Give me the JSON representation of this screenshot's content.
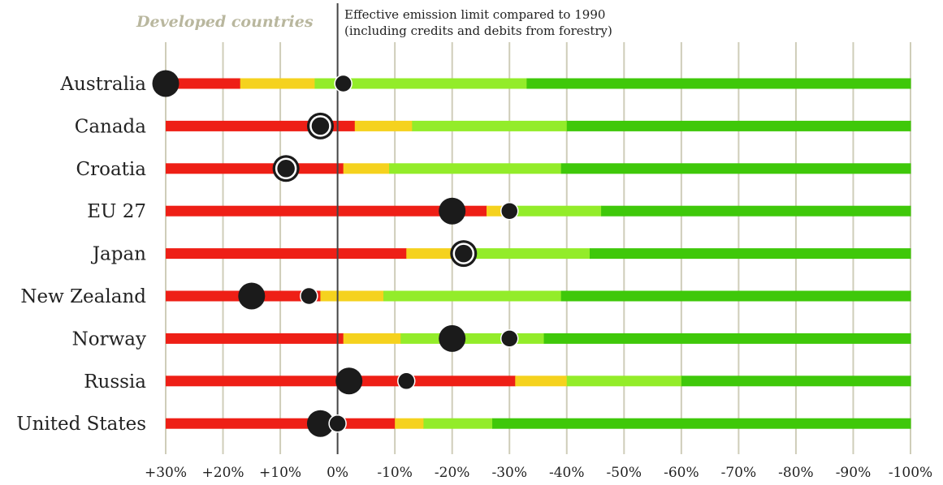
{
  "header": {
    "title": "Developed countries",
    "subtitle_line1": "Effective emission limit compared to 1990",
    "subtitle_line2": "(including credits and debits from forestry)"
  },
  "colors": {
    "red": "#ee1f16",
    "yellow": "#f5d21e",
    "light_green": "#93ec2a",
    "green": "#3fc80a",
    "dot": "#1b1b1b",
    "grid": "#cfcdb9",
    "zero_line": "#444444"
  },
  "chart_data": {
    "type": "range-bar",
    "title": "Developed countries",
    "subtitle": "Effective emission limit compared to 1990 (including credits and debits from forestry)",
    "x_tick_labels": [
      "+30%",
      "+20%",
      "+10%",
      "0%",
      "-10%",
      "-20%",
      "-30%",
      "-40%",
      "-50%",
      "-60%",
      "-70%",
      "-80%",
      "-90%",
      "-100%"
    ],
    "x_ticks": [
      30,
      20,
      10,
      0,
      -10,
      -20,
      -30,
      -40,
      -50,
      -60,
      -70,
      -80,
      -90,
      -100
    ],
    "xlim": [
      30,
      -100
    ],
    "zero_line": 0,
    "color_legend": [
      "red",
      "yellow",
      "light green",
      "green"
    ],
    "countries": [
      {
        "name": "Australia",
        "segments": [
          {
            "color": "red",
            "from": 30,
            "to": 17
          },
          {
            "color": "yellow",
            "from": 17,
            "to": 4
          },
          {
            "color": "light_green",
            "from": 4,
            "to": -33
          },
          {
            "color": "green",
            "from": -33,
            "to": -100
          }
        ],
        "markers": [
          {
            "value": 30,
            "size": "large"
          },
          {
            "value": -1,
            "size": "small"
          }
        ]
      },
      {
        "name": "Canada",
        "segments": [
          {
            "color": "red",
            "from": 30,
            "to": -3
          },
          {
            "color": "yellow",
            "from": -3,
            "to": -13
          },
          {
            "color": "light_green",
            "from": -13,
            "to": -40
          },
          {
            "color": "green",
            "from": -40,
            "to": -100
          }
        ],
        "markers": [
          {
            "value": 3,
            "size": "ringed"
          }
        ]
      },
      {
        "name": "Croatia",
        "segments": [
          {
            "color": "red",
            "from": 30,
            "to": -1
          },
          {
            "color": "yellow",
            "from": -1,
            "to": -9
          },
          {
            "color": "light_green",
            "from": -9,
            "to": -39
          },
          {
            "color": "green",
            "from": -39,
            "to": -100
          }
        ],
        "markers": [
          {
            "value": 9,
            "size": "ringed"
          }
        ]
      },
      {
        "name": "EU 27",
        "segments": [
          {
            "color": "red",
            "from": 30,
            "to": -26
          },
          {
            "color": "yellow",
            "from": -26,
            "to": -29
          },
          {
            "color": "light_green",
            "from": -29,
            "to": -46
          },
          {
            "color": "green",
            "from": -46,
            "to": -100
          }
        ],
        "markers": [
          {
            "value": -20,
            "size": "large"
          },
          {
            "value": -30,
            "size": "small"
          }
        ]
      },
      {
        "name": "Japan",
        "segments": [
          {
            "color": "red",
            "from": 30,
            "to": -12
          },
          {
            "color": "yellow",
            "from": -12,
            "to": -21
          },
          {
            "color": "light_green",
            "from": -21,
            "to": -44
          },
          {
            "color": "green",
            "from": -44,
            "to": -100
          }
        ],
        "markers": [
          {
            "value": -22,
            "size": "ringed"
          }
        ]
      },
      {
        "name": "New Zealand",
        "segments": [
          {
            "color": "red",
            "from": 30,
            "to": 3
          },
          {
            "color": "yellow",
            "from": 3,
            "to": -8
          },
          {
            "color": "light_green",
            "from": -8,
            "to": -39
          },
          {
            "color": "green",
            "from": -39,
            "to": -100
          }
        ],
        "markers": [
          {
            "value": 15,
            "size": "large"
          },
          {
            "value": 5,
            "size": "small"
          }
        ]
      },
      {
        "name": "Norway",
        "segments": [
          {
            "color": "red",
            "from": 30,
            "to": -1
          },
          {
            "color": "yellow",
            "from": -1,
            "to": -11
          },
          {
            "color": "light_green",
            "from": -11,
            "to": -36
          },
          {
            "color": "green",
            "from": -36,
            "to": -100
          }
        ],
        "markers": [
          {
            "value": -20,
            "size": "large"
          },
          {
            "value": -30,
            "size": "small"
          }
        ]
      },
      {
        "name": "Russia",
        "segments": [
          {
            "color": "red",
            "from": 30,
            "to": -31
          },
          {
            "color": "yellow",
            "from": -31,
            "to": -40
          },
          {
            "color": "light_green",
            "from": -40,
            "to": -60
          },
          {
            "color": "green",
            "from": -60,
            "to": -100
          }
        ],
        "markers": [
          {
            "value": -2,
            "size": "large"
          },
          {
            "value": -12,
            "size": "small"
          }
        ]
      },
      {
        "name": "United States",
        "segments": [
          {
            "color": "red",
            "from": 30,
            "to": -10
          },
          {
            "color": "yellow",
            "from": -10,
            "to": -15
          },
          {
            "color": "light_green",
            "from": -15,
            "to": -27
          },
          {
            "color": "green",
            "from": -27,
            "to": -100
          }
        ],
        "markers": [
          {
            "value": 3,
            "size": "large"
          },
          {
            "value": 0,
            "size": "small"
          }
        ]
      }
    ]
  }
}
